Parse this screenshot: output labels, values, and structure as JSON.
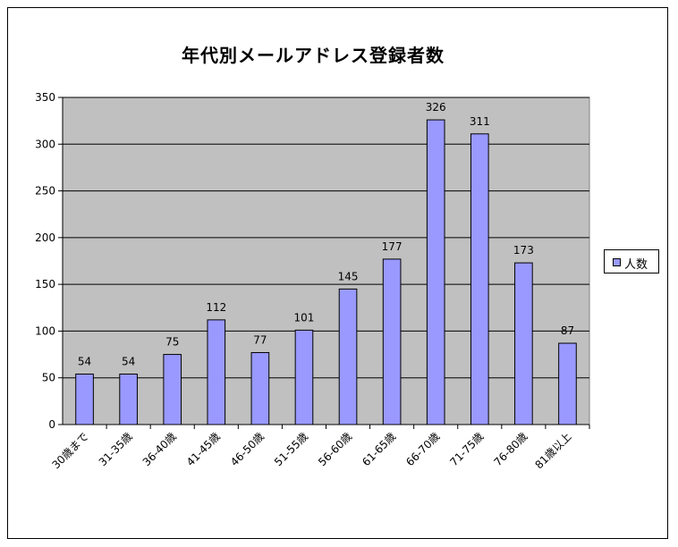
{
  "chart_data": {
    "type": "bar",
    "title": "年代別メールアドレス登録者数",
    "categories": [
      "30歳まで",
      "31-35歳",
      "36-40歳",
      "41-45歳",
      "46-50歳",
      "51-55歳",
      "56-60歳",
      "61-65歳",
      "66-70歳",
      "71-75歳",
      "76-80歳",
      "81歳以上"
    ],
    "series": [
      {
        "name": "人数",
        "values": [
          54,
          54,
          75,
          112,
          77,
          101,
          145,
          177,
          326,
          311,
          173,
          87
        ]
      }
    ],
    "ylim": [
      0,
      350
    ],
    "yticks": [
      0,
      50,
      100,
      150,
      200,
      250,
      300,
      350
    ],
    "grid": true,
    "legend_position": "right",
    "colors": {
      "bar": "#9999ff",
      "plot_background": "#c0c0c0",
      "grid": "#000000"
    }
  }
}
